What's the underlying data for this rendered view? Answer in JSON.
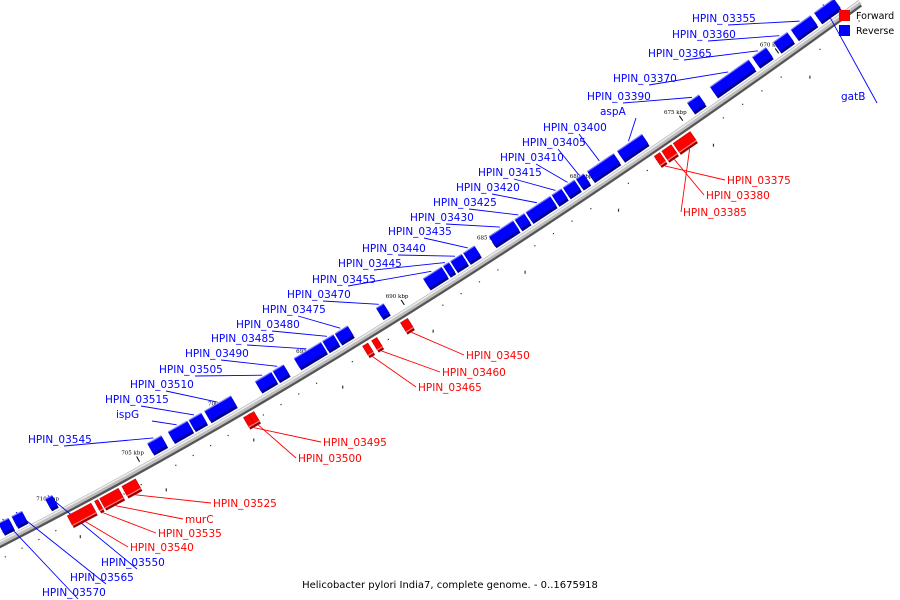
{
  "caption": "Helicobacter pylori India7, complete genome. - 0..1675918",
  "legend": [
    {
      "label": "Forward",
      "color": "#ff0000"
    },
    {
      "label": "Reverse",
      "color": "#0000ff"
    }
  ],
  "colors": {
    "forward": "#ff0000",
    "reverse": "#0000ff",
    "backbone": "#999999"
  },
  "ticks": [
    {
      "label": "670 kbp",
      "pos": 670
    },
    {
      "label": "675 kbp",
      "pos": 675
    },
    {
      "label": "680 kbp",
      "pos": 680
    },
    {
      "label": "685 kbp",
      "pos": 685
    },
    {
      "label": "690 kbp",
      "pos": 690
    },
    {
      "label": "695 kbp",
      "pos": 695
    },
    {
      "label": "700 kbp",
      "pos": 700
    },
    {
      "label": "705 kbp",
      "pos": 705
    },
    {
      "label": "710 kbp",
      "pos": 710
    }
  ],
  "features": [
    {
      "label": "HPIN_03355",
      "strand": "reverse",
      "start": 668.0,
      "end": 669.0
    },
    {
      "label": "HPIN_03360",
      "strand": "reverse",
      "start": 669.2,
      "end": 669.9
    },
    {
      "label": "HPIN_03365",
      "strand": "reverse",
      "start": 670.3,
      "end": 671.0
    },
    {
      "label": "gatB",
      "strand": "reverse",
      "start": 666.8,
      "end": 667.8
    },
    {
      "label": "HPIN_03370",
      "strand": "reverse",
      "start": 671.2,
      "end": 673.2
    },
    {
      "label": "HPIN_03390",
      "strand": "reverse",
      "start": 673.8,
      "end": 674.4
    },
    {
      "label": "aspA",
      "strand": "reverse",
      "start": 676.8,
      "end": 678.1
    },
    {
      "label": "HPIN_03400",
      "strand": "reverse",
      "start": 678.3,
      "end": 679.7
    },
    {
      "label": "HPIN_03405",
      "strand": "reverse",
      "start": 679.9,
      "end": 680.3
    },
    {
      "label": "HPIN_03410",
      "strand": "reverse",
      "start": 680.4,
      "end": 681.0
    },
    {
      "label": "HPIN_03415",
      "strand": "reverse",
      "start": 681.1,
      "end": 681.6
    },
    {
      "label": "HPIN_03420",
      "strand": "reverse",
      "start": 681.7,
      "end": 683.0
    },
    {
      "label": "HPIN_03425",
      "strand": "reverse",
      "start": 683.1,
      "end": 683.6
    },
    {
      "label": "HPIN_03430",
      "strand": "reverse",
      "start": 683.7,
      "end": 685.0
    },
    {
      "label": "HPIN_03435",
      "strand": "reverse",
      "start": 685.8,
      "end": 686.4
    },
    {
      "label": "HPIN_03440",
      "strand": "reverse",
      "start": 686.5,
      "end": 687.1
    },
    {
      "label": "HPIN_03445",
      "strand": "reverse",
      "start": 687.2,
      "end": 687.5
    },
    {
      "label": "HPIN_03455",
      "strand": "reverse",
      "start": 687.6,
      "end": 688.6
    },
    {
      "label": "HPIN_03470",
      "strand": "reverse",
      "start": 690.8,
      "end": 691.2
    },
    {
      "label": "HPIN_03475",
      "strand": "reverse",
      "start": 692.8,
      "end": 693.5
    },
    {
      "label": "HPIN_03480",
      "strand": "reverse",
      "start": 693.6,
      "end": 694.2
    },
    {
      "label": "HPIN_03485",
      "strand": "reverse",
      "start": 694.3,
      "end": 695.8
    },
    {
      "label": "HPIN_03490",
      "strand": "reverse",
      "start": 696.4,
      "end": 697.0
    },
    {
      "label": "HPIN_03505",
      "strand": "reverse",
      "start": 697.1,
      "end": 698.0
    },
    {
      "label": "HPIN_03510",
      "strand": "reverse",
      "start": 699.4,
      "end": 700.9
    },
    {
      "label": "HPIN_03515",
      "strand": "reverse",
      "start": 701.1,
      "end": 701.8
    },
    {
      "label": "ispG",
      "strand": "reverse",
      "start": 701.9,
      "end": 703.0
    },
    {
      "label": "HPIN_03545",
      "strand": "reverse",
      "start": 703.4,
      "end": 704.2
    },
    {
      "label": "HPIN_03550",
      "strand": "reverse",
      "start": 709.8,
      "end": 710.2
    },
    {
      "label": "HPIN_03565",
      "strand": "reverse",
      "start": 711.6,
      "end": 712.2
    },
    {
      "label": "HPIN_03570",
      "strand": "reverse",
      "start": 712.4,
      "end": 713.0
    },
    {
      "label": "HPIN_03375",
      "strand": "forward",
      "start": 676.6,
      "end": 676.9
    },
    {
      "label": "HPIN_03380",
      "strand": "forward",
      "start": 676.0,
      "end": 676.5
    },
    {
      "label": "HPIN_03385",
      "strand": "forward",
      "start": 675.0,
      "end": 675.9
    },
    {
      "label": "HPIN_03450",
      "strand": "forward",
      "start": 690.2,
      "end": 690.6
    },
    {
      "label": "HPIN_03460",
      "strand": "forward",
      "start": 691.9,
      "end": 692.2
    },
    {
      "label": "HPIN_03465",
      "strand": "forward",
      "start": 692.4,
      "end": 692.7
    },
    {
      "label": "HPIN_03495",
      "strand": "forward",
      "start": 699.0,
      "end": 699.4
    },
    {
      "label": "HPIN_03500",
      "strand": "forward",
      "start": 698.8,
      "end": 699.1
    },
    {
      "label": "HPIN_03525",
      "strand": "forward",
      "start": 705.6,
      "end": 706.4
    },
    {
      "label": "murC",
      "strand": "forward",
      "start": 706.6,
      "end": 707.7
    },
    {
      "label": "HPIN_03535",
      "strand": "forward",
      "start": 707.8,
      "end": 708.0
    },
    {
      "label": "HPIN_03540",
      "strand": "forward",
      "start": 708.2,
      "end": 709.6
    }
  ]
}
